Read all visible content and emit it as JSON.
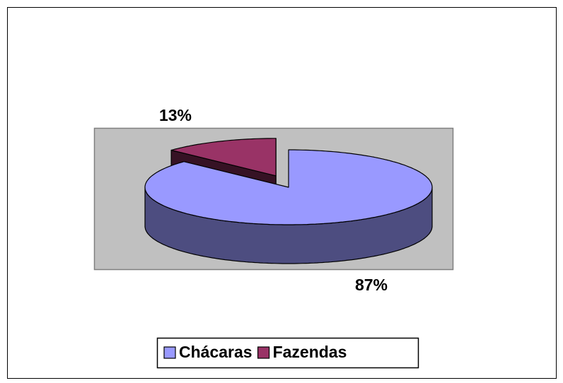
{
  "chart_data": {
    "type": "pie3d",
    "categories": [
      "Chácaras",
      "Fazendas"
    ],
    "values": [
      87,
      13
    ],
    "value_labels": [
      "87%",
      "13%"
    ],
    "colors": [
      "#9999ff",
      "#993366"
    ],
    "exploded": [
      false,
      true
    ],
    "legend": "bottom"
  }
}
